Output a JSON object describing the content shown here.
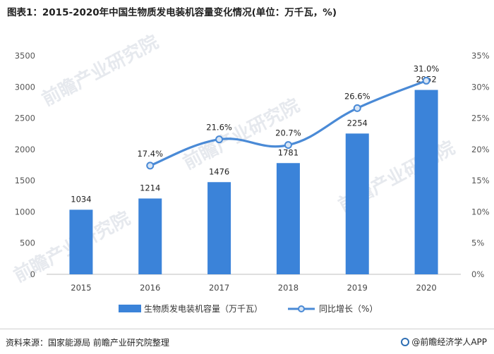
{
  "title": "图表1：2015-2020年中国生物质发电装机容量变化情况(单位：万千瓦，%)",
  "footer": {
    "source": "资料来源：国家能源局 前瞻产业研究院整理",
    "brand": "@前瞻经济学人APP"
  },
  "watermark": "前瞻产业研究院",
  "colors": {
    "bar": "#3b83d9",
    "line": "#4a8ad6",
    "marker_fill": "#d9e6f5"
  },
  "chart_data": {
    "type": "bar+line",
    "categories": [
      "2015",
      "2016",
      "2017",
      "2018",
      "2019",
      "2020"
    ],
    "series": [
      {
        "name": "生物质发电装机容量（万千瓦）",
        "type": "bar",
        "axis": "left",
        "values": [
          1034,
          1214,
          1476,
          1781,
          2254,
          2952
        ],
        "labels": [
          "1034",
          "1214",
          "1476",
          "1781",
          "2254",
          "2952"
        ]
      },
      {
        "name": "同比增长（%）",
        "type": "line",
        "axis": "right",
        "values": [
          null,
          17.4,
          21.6,
          20.7,
          26.6,
          31.0
        ],
        "labels": [
          "",
          "17.4%",
          "21.6%",
          "20.7%",
          "26.6%",
          "31.0%"
        ]
      }
    ],
    "y_left": {
      "min": 0,
      "max": 3500,
      "ticks": [
        "0",
        "500",
        "1000",
        "1500",
        "2000",
        "2500",
        "3000",
        "3500"
      ]
    },
    "y_right": {
      "min": 0,
      "max": 35,
      "ticks": [
        "0%",
        "5%",
        "10%",
        "15%",
        "20%",
        "25%",
        "30%",
        "35%"
      ]
    },
    "legend_position": "bottom"
  }
}
